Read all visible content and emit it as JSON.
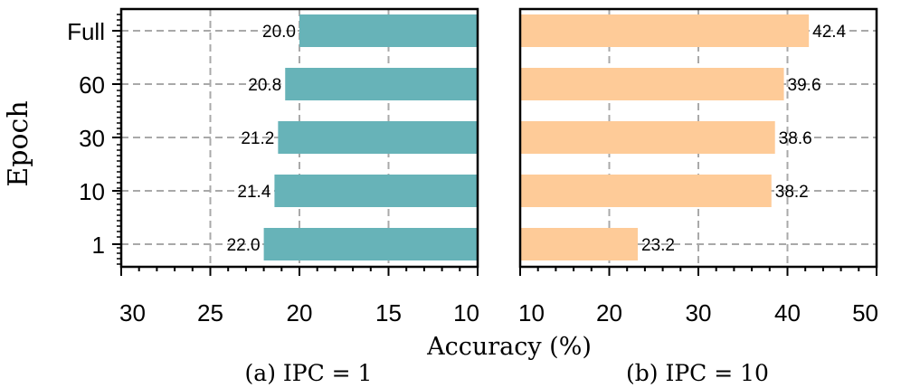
{
  "chart_data": [
    {
      "type": "bar",
      "orientation": "horizontal",
      "x_inverted": true,
      "caption": "(a) IPC = 1",
      "ylabel": "Epoch",
      "categories": [
        "1",
        "10",
        "30",
        "60",
        "Full"
      ],
      "values": [
        22.0,
        21.4,
        21.2,
        20.8,
        20.0
      ],
      "value_labels": [
        "22.0",
        "21.4",
        "21.2",
        "20.8",
        "20.0"
      ],
      "xlim": [
        30,
        10
      ],
      "xticks": [
        30,
        25,
        20,
        15,
        10
      ],
      "xtick_labels": [
        "30",
        "25",
        "20",
        "15",
        "10"
      ],
      "bar_color": "#67b3b8",
      "grid": true
    },
    {
      "type": "bar",
      "orientation": "horizontal",
      "x_inverted": false,
      "caption": "(b) IPC = 10",
      "categories": [
        "1",
        "10",
        "30",
        "60",
        "Full"
      ],
      "values": [
        23.2,
        38.2,
        38.6,
        39.6,
        42.4
      ],
      "value_labels": [
        "23.2",
        "38.2",
        "38.6",
        "39.6",
        "42.4"
      ],
      "xlim": [
        10,
        50
      ],
      "xticks": [
        10,
        20,
        30,
        40,
        50
      ],
      "xtick_labels": [
        "10",
        "20",
        "30",
        "40",
        "50"
      ],
      "bar_color": "#fecb98",
      "grid": true
    }
  ],
  "shared_xlabel": "Accuracy  (%)"
}
